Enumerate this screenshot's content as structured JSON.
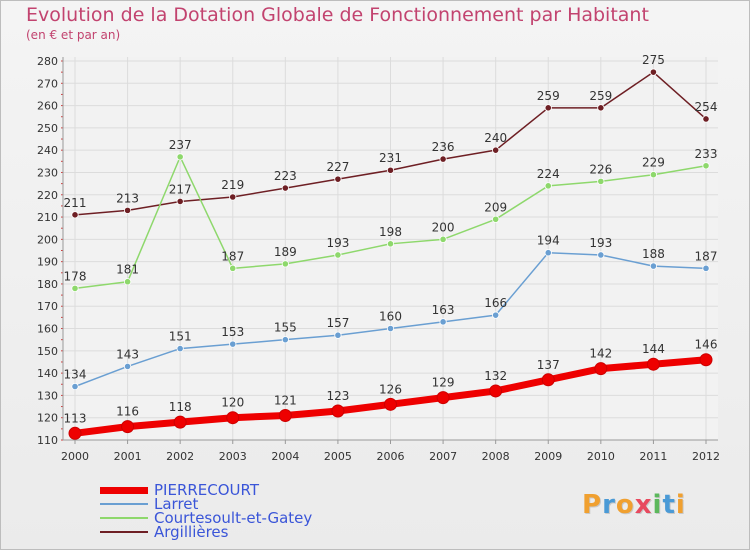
{
  "title": "Evolution de la Dotation Globale de Fonctionnement par Habitant",
  "subtitle": "(en € et par an)",
  "logo": {
    "letters": [
      "P",
      "r",
      "o",
      "x",
      "i",
      "t",
      "i"
    ],
    "colors": [
      "#f0a030",
      "#4a9ad6",
      "#f0a030",
      "#e84a5f",
      "#5cb85c",
      "#4a9ad6",
      "#f0a030"
    ]
  },
  "chart_data": {
    "type": "line",
    "title": "Evolution de la Dotation Globale de Fonctionnement par Habitant",
    "subtitle": "(en € et par an)",
    "xlabel": "",
    "ylabel": "",
    "ylim": [
      110,
      280
    ],
    "y_ticks": [
      110,
      120,
      130,
      140,
      150,
      160,
      170,
      180,
      190,
      200,
      210,
      220,
      230,
      240,
      250,
      260,
      270,
      280
    ],
    "grid": true,
    "legend_position": "bottom-left",
    "x": [
      "2000",
      "2001",
      "2002",
      "2003",
      "2004",
      "2005",
      "2006",
      "2007",
      "2008",
      "2009",
      "2010",
      "2011",
      "2012"
    ],
    "series": [
      {
        "name": "Argillières",
        "color": "#6e1f24",
        "width": 1.5,
        "values": [
          211,
          213,
          217,
          219,
          223,
          227,
          231,
          236,
          240,
          259,
          259,
          275,
          254
        ]
      },
      {
        "name": "Courtesoult-et-Gatey",
        "color": "#8ed86c",
        "width": 1.5,
        "values": [
          178,
          181,
          237,
          187,
          189,
          193,
          198,
          200,
          209,
          224,
          226,
          229,
          233
        ]
      },
      {
        "name": "Larret",
        "color": "#6a9fd2",
        "width": 1.5,
        "values": [
          134,
          143,
          151,
          153,
          155,
          157,
          160,
          163,
          166,
          194,
          193,
          188,
          187
        ]
      },
      {
        "name": "PIERRECOURT",
        "color": "#ee0000",
        "width": 7,
        "values": [
          113,
          116,
          118,
          120,
          121,
          123,
          126,
          129,
          132,
          137,
          142,
          144,
          146
        ]
      }
    ],
    "legend_order": [
      "PIERRECOURT",
      "Larret",
      "Courtesoult-et-Gatey",
      "Argillières"
    ]
  }
}
